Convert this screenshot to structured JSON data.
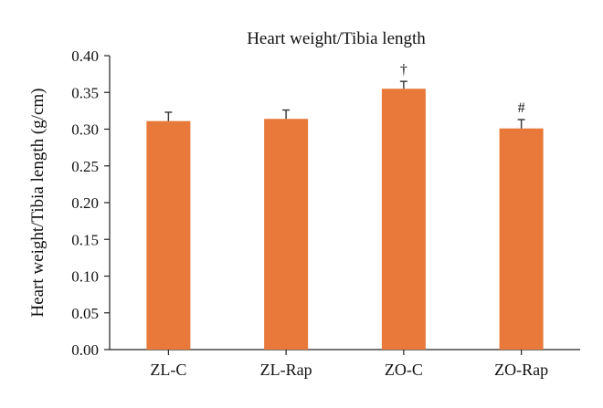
{
  "chart_data": {
    "type": "bar",
    "title": "Heart weight/Tibia length",
    "xlabel": "",
    "ylabel": "Heart weight/Tibia length (g/cm)",
    "categories": [
      "ZL-C",
      "ZL-Rap",
      "ZO-C",
      "ZO-Rap"
    ],
    "values": [
      0.311,
      0.314,
      0.355,
      0.301
    ],
    "errors": [
      0.012,
      0.012,
      0.01,
      0.012
    ],
    "annotations": [
      "",
      "",
      "†",
      "#"
    ],
    "ylim": [
      0,
      0.4
    ],
    "yticks": [
      "0.00",
      "0.05",
      "0.10",
      "0.15",
      "0.20",
      "0.25",
      "0.30",
      "0.35",
      "0.40"
    ],
    "grid": false,
    "legend": "none",
    "bar_color": "#E8793A"
  }
}
